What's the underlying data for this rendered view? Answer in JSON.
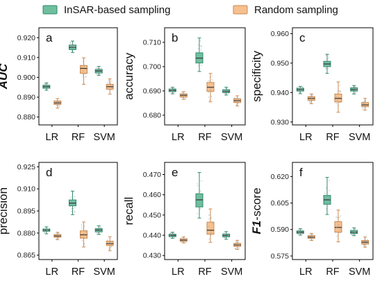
{
  "legend": {
    "items": [
      {
        "name": "InSAR-based sampling",
        "fill": "#6fbf9f",
        "stroke": "#2f8a6e"
      },
      {
        "name": "Random sampling",
        "fill": "#f6c08f",
        "stroke": "#c98a52"
      }
    ]
  },
  "chart_data": [
    {
      "type": "box",
      "panel": "a",
      "ylabel": "AUC",
      "ylabel_style": "italic-bold",
      "categories": [
        "LR",
        "RF",
        "SVM"
      ],
      "ylim": [
        0.876,
        0.925
      ],
      "yticks": [
        0.88,
        0.89,
        0.9,
        0.91,
        0.92
      ],
      "ytick_labels": [
        "0.880",
        "0.890",
        "0.900",
        "0.910",
        "0.920"
      ],
      "series": [
        {
          "name": "InSAR-based sampling",
          "boxes": [
            {
              "min": 0.8935,
              "q1": 0.8945,
              "median": 0.8953,
              "q3": 0.896,
              "max": 0.8972
            },
            {
              "min": 0.9125,
              "q1": 0.914,
              "median": 0.9151,
              "q3": 0.9163,
              "max": 0.9183
            },
            {
              "min": 0.901,
              "q1": 0.9022,
              "median": 0.9032,
              "q3": 0.904,
              "max": 0.9055
            }
          ]
        },
        {
          "name": "Random sampling",
          "boxes": [
            {
              "min": 0.8845,
              "q1": 0.8863,
              "median": 0.8871,
              "q3": 0.8881,
              "max": 0.8893
            },
            {
              "min": 0.8965,
              "q1": 0.902,
              "median": 0.9045,
              "q3": 0.906,
              "max": 0.9098
            },
            {
              "min": 0.8915,
              "q1": 0.894,
              "median": 0.8953,
              "q3": 0.8965,
              "max": 0.8992
            }
          ]
        }
      ]
    },
    {
      "type": "box",
      "panel": "b",
      "ylabel": "accuracy",
      "ylabel_style": "normal",
      "categories": [
        "LR",
        "RF",
        "SVM"
      ],
      "ylim": [
        0.676,
        0.716
      ],
      "yticks": [
        0.68,
        0.69,
        0.7,
        0.71
      ],
      "ytick_labels": [
        "0.680",
        "0.690",
        "0.700",
        "0.710"
      ],
      "series": [
        {
          "name": "InSAR-based sampling",
          "boxes": [
            {
              "min": 0.6888,
              "q1": 0.6897,
              "median": 0.6902,
              "q3": 0.6908,
              "max": 0.6915
            },
            {
              "min": 0.698,
              "q1": 0.7015,
              "median": 0.7035,
              "q3": 0.7057,
              "max": 0.7118
            },
            {
              "min": 0.6883,
              "q1": 0.6893,
              "median": 0.6898,
              "q3": 0.6905,
              "max": 0.6915
            }
          ]
        },
        {
          "name": "Random sampling",
          "boxes": [
            {
              "min": 0.6865,
              "q1": 0.6875,
              "median": 0.6882,
              "q3": 0.6888,
              "max": 0.6897
            },
            {
              "min": 0.6855,
              "q1": 0.6898,
              "median": 0.6915,
              "q3": 0.6935,
              "max": 0.6972
            },
            {
              "min": 0.6838,
              "q1": 0.6852,
              "median": 0.686,
              "q3": 0.6868,
              "max": 0.688
            }
          ]
        }
      ]
    },
    {
      "type": "box",
      "panel": "c",
      "ylabel": "specificity",
      "ylabel_style": "normal",
      "categories": [
        "LR",
        "RF",
        "SVM"
      ],
      "ylim": [
        0.929,
        0.962
      ],
      "yticks": [
        0.93,
        0.94,
        0.95,
        0.96
      ],
      "ytick_labels": [
        "0.930",
        "0.940",
        "0.950",
        "0.960"
      ],
      "series": [
        {
          "name": "InSAR-based sampling",
          "boxes": [
            {
              "min": 0.9396,
              "q1": 0.9405,
              "median": 0.941,
              "q3": 0.9415,
              "max": 0.9421
            },
            {
              "min": 0.9465,
              "q1": 0.9488,
              "median": 0.9497,
              "q3": 0.9506,
              "max": 0.953
            },
            {
              "min": 0.9395,
              "q1": 0.9405,
              "median": 0.941,
              "q3": 0.9416,
              "max": 0.9424
            }
          ]
        },
        {
          "name": "Random sampling",
          "boxes": [
            {
              "min": 0.9362,
              "q1": 0.9373,
              "median": 0.938,
              "q3": 0.9386,
              "max": 0.9395
            },
            {
              "min": 0.9333,
              "q1": 0.9368,
              "median": 0.938,
              "q3": 0.9395,
              "max": 0.9436
            },
            {
              "min": 0.934,
              "q1": 0.9352,
              "median": 0.9358,
              "q3": 0.9366,
              "max": 0.938
            }
          ]
        }
      ]
    },
    {
      "type": "box",
      "panel": "d",
      "ylabel": "precision",
      "ylabel_style": "normal",
      "categories": [
        "LR",
        "RF",
        "SVM"
      ],
      "ylim": [
        0.862,
        0.928
      ],
      "yticks": [
        0.865,
        0.88,
        0.895,
        0.91,
        0.925
      ],
      "ytick_labels": [
        "0.865",
        "0.880",
        "0.895",
        "0.910",
        "0.925"
      ],
      "series": [
        {
          "name": "InSAR-based sampling",
          "boxes": [
            {
              "min": 0.8795,
              "q1": 0.8812,
              "median": 0.882,
              "q3": 0.8828,
              "max": 0.8842
            },
            {
              "min": 0.8925,
              "q1": 0.8985,
              "median": 0.9003,
              "q3": 0.9025,
              "max": 0.9085
            },
            {
              "min": 0.879,
              "q1": 0.8808,
              "median": 0.882,
              "q3": 0.883,
              "max": 0.885
            }
          ]
        },
        {
          "name": "Random sampling",
          "boxes": [
            {
              "min": 0.8755,
              "q1": 0.8772,
              "median": 0.878,
              "q3": 0.879,
              "max": 0.8805
            },
            {
              "min": 0.8705,
              "q1": 0.8765,
              "median": 0.8788,
              "q3": 0.8815,
              "max": 0.8875
            },
            {
              "min": 0.868,
              "q1": 0.8715,
              "median": 0.8728,
              "q3": 0.8745,
              "max": 0.8775
            }
          ]
        }
      ]
    },
    {
      "type": "box",
      "panel": "e",
      "ylabel": "recall",
      "ylabel_style": "normal",
      "categories": [
        "LR",
        "RF",
        "SVM"
      ],
      "ylim": [
        0.428,
        0.476
      ],
      "yticks": [
        0.43,
        0.44,
        0.45,
        0.46,
        0.47
      ],
      "ytick_labels": [
        "0.430",
        "0.440",
        "0.450",
        "0.460",
        "0.470"
      ],
      "series": [
        {
          "name": "InSAR-based sampling",
          "boxes": [
            {
              "min": 0.4385,
              "q1": 0.4393,
              "median": 0.4399,
              "q3": 0.4405,
              "max": 0.4415
            },
            {
              "min": 0.4485,
              "q1": 0.454,
              "median": 0.4575,
              "q3": 0.4605,
              "max": 0.471
            },
            {
              "min": 0.438,
              "q1": 0.4392,
              "median": 0.4399,
              "q3": 0.4406,
              "max": 0.4418
            }
          ]
        },
        {
          "name": "Random sampling",
          "boxes": [
            {
              "min": 0.4362,
              "q1": 0.437,
              "median": 0.4376,
              "q3": 0.4383,
              "max": 0.4392
            },
            {
              "min": 0.4365,
              "q1": 0.4405,
              "median": 0.4425,
              "q3": 0.4465,
              "max": 0.453
            },
            {
              "min": 0.433,
              "q1": 0.4345,
              "median": 0.4352,
              "q3": 0.436,
              "max": 0.4375
            }
          ]
        }
      ]
    },
    {
      "type": "box",
      "panel": "f",
      "ylabel": "F1-score",
      "ylabel_style": "italic-prefix",
      "categories": [
        "LR",
        "RF",
        "SVM"
      ],
      "ylim": [
        0.573,
        0.628
      ],
      "yticks": [
        0.575,
        0.59,
        0.605,
        0.62
      ],
      "ytick_labels": [
        "0.575",
        "0.590",
        "0.605",
        "0.620"
      ],
      "series": [
        {
          "name": "InSAR-based sampling",
          "boxes": [
            {
              "min": 0.5868,
              "q1": 0.5878,
              "median": 0.5885,
              "q3": 0.5892,
              "max": 0.5905
            },
            {
              "min": 0.5985,
              "q1": 0.6043,
              "median": 0.6068,
              "q3": 0.6093,
              "max": 0.6195
            },
            {
              "min": 0.5865,
              "q1": 0.5877,
              "median": 0.5885,
              "q3": 0.5895,
              "max": 0.591
            }
          ]
        },
        {
          "name": "Random sampling",
          "boxes": [
            {
              "min": 0.5838,
              "q1": 0.585,
              "median": 0.5857,
              "q3": 0.5866,
              "max": 0.5878
            },
            {
              "min": 0.583,
              "q1": 0.5885,
              "median": 0.5912,
              "q3": 0.5945,
              "max": 0.601
            },
            {
              "min": 0.58,
              "q1": 0.5817,
              "median": 0.5828,
              "q3": 0.5838,
              "max": 0.5858
            }
          ]
        }
      ]
    }
  ]
}
